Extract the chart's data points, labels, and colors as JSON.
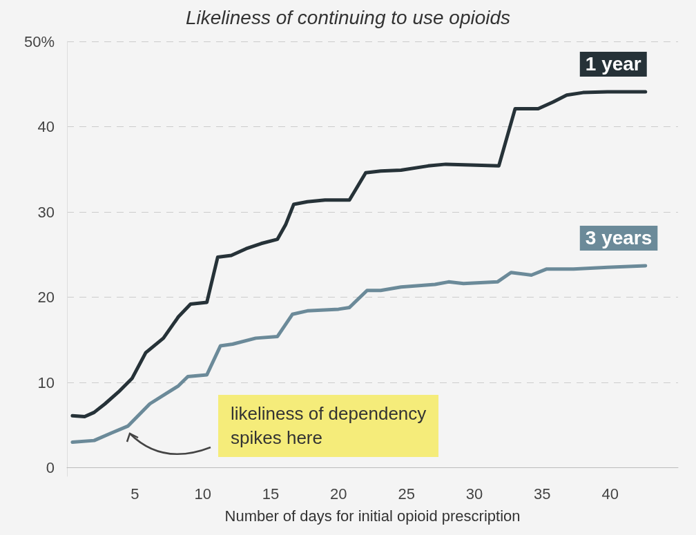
{
  "chart_data": {
    "type": "line",
    "title": "Likeliness of continuing to use opioids",
    "xlabel": "Number of days for initial opioid prescription",
    "xlim": [
      0,
      45
    ],
    "xticks": [
      5,
      10,
      15,
      20,
      25,
      30,
      35,
      40
    ],
    "ylim": [
      -1,
      50
    ],
    "yticks": [
      0,
      10,
      20,
      30,
      40,
      {
        "value": 50,
        "label": "50%"
      }
    ],
    "grid": "y",
    "legend": false,
    "marker": "none",
    "line_style": "solid",
    "annotations": [
      "likeliness of dependency\nspikes here"
    ],
    "series": [
      {
        "name": "1 year",
        "color": "#263238",
        "x": [
          0.4,
          1.3,
          2.0,
          2.8,
          3.8,
          4.8,
          5.8,
          7.1,
          8.2,
          9.1,
          10.3,
          11.1,
          12.1,
          13.2,
          14.3,
          15.5,
          16.1,
          16.7,
          17.7,
          19.0,
          20.8,
          22.0,
          23.1,
          24.6,
          26.6,
          27.9,
          29.7,
          31.8,
          33.0,
          34.7,
          35.8,
          36.8,
          38.0,
          39.8,
          42.6
        ],
        "values": [
          6.1,
          6.0,
          6.5,
          7.5,
          8.9,
          10.5,
          13.5,
          15.2,
          17.7,
          19.2,
          19.4,
          24.7,
          24.9,
          25.7,
          26.3,
          26.8,
          28.5,
          30.9,
          31.2,
          31.4,
          31.4,
          34.6,
          34.8,
          34.9,
          35.4,
          35.6,
          35.5,
          35.4,
          42.1,
          42.1,
          42.9,
          43.7,
          44.0,
          44.1,
          44.1
        ]
      },
      {
        "name": "3 years",
        "color": "#6b8a99",
        "x": [
          0.4,
          2.0,
          3.3,
          4.5,
          6.1,
          7.3,
          8.2,
          8.9,
          10.3,
          11.3,
          12.2,
          13.9,
          15.5,
          16.6,
          17.7,
          20.0,
          20.8,
          22.1,
          23.1,
          24.6,
          27.1,
          28.1,
          29.2,
          31.7,
          32.7,
          34.2,
          35.3,
          37.3,
          39.8,
          42.6
        ],
        "values": [
          3.0,
          3.2,
          4.1,
          4.9,
          7.5,
          8.7,
          9.6,
          10.7,
          10.9,
          14.3,
          14.5,
          15.2,
          15.4,
          18.0,
          18.4,
          18.6,
          18.8,
          20.8,
          20.8,
          21.2,
          21.5,
          21.8,
          21.6,
          21.8,
          22.9,
          22.6,
          23.3,
          23.3,
          23.5,
          23.7
        ]
      }
    ]
  }
}
